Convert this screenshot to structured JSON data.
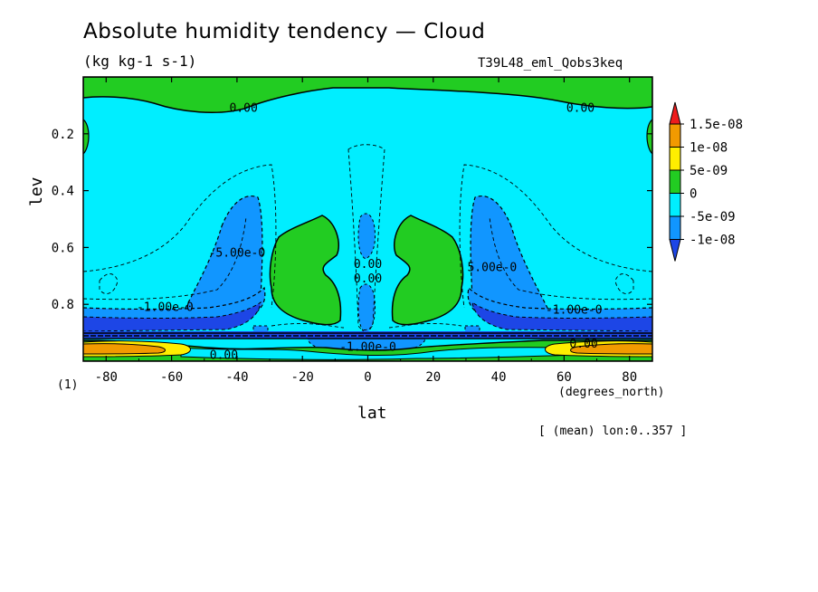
{
  "chart_data": {
    "type": "heatmap",
    "title": "Absolute humidity tendency — Cloud",
    "units": "(kg kg-1 s-1)",
    "experiment": "T39L48_eml_Qobs3keq",
    "xlabel": "lat",
    "x_units": "(degrees_north)",
    "ylabel": "lev",
    "y_level_note": "(1)",
    "mean_note": "[ (mean) lon:0..357 ]",
    "xlim": [
      -87,
      87
    ],
    "ylim": [
      1.0,
      0.0
    ],
    "x_ticks": [
      "-80",
      "-60",
      "-40",
      "-20",
      "0",
      "20",
      "40",
      "60",
      "80"
    ],
    "x_tick_values": [
      -80,
      -60,
      -40,
      -20,
      0,
      20,
      40,
      60,
      80
    ],
    "y_ticks": [
      "0.2",
      "0.4",
      "0.6",
      "0.8"
    ],
    "y_tick_values": [
      0.2,
      0.4,
      0.6,
      0.8
    ],
    "colorbar": {
      "labels": [
        "1.5e-08",
        "1e-08",
        "5e-09",
        "0",
        "-5e-09",
        "-1e-08"
      ],
      "values": [
        1.5e-08,
        1e-08,
        5e-09,
        0,
        -5e-09,
        -1e-08
      ],
      "colors": [
        "#ee1c1c",
        "#f29a00",
        "#ffee00",
        "#22cc22",
        "#00eeff",
        "#1196ff",
        "#1d46e6"
      ]
    },
    "contour_labels": [
      {
        "text": "0.00",
        "lat": -38,
        "lev": 0.11
      },
      {
        "text": "0.00",
        "lat": 65,
        "lev": 0.11
      },
      {
        "text": "0.00",
        "lat": 0,
        "lev": 0.66
      },
      {
        "text": "0.00",
        "lat": 0,
        "lev": 0.71
      },
      {
        "text": "-5.00e-0",
        "lat": -40,
        "lev": 0.62
      },
      {
        "text": "5.00e-0",
        "lat": 38,
        "lev": 0.67
      },
      {
        "text": "-1.00e-0",
        "lat": -62,
        "lev": 0.81
      },
      {
        "text": "-1.00e-0",
        "lat": 63,
        "lev": 0.82
      },
      {
        "text": "-1.00e-0",
        "lat": 0,
        "lev": 0.95
      },
      {
        "text": "0.00",
        "lat": -44,
        "lev": 0.98
      },
      {
        "text": "0.00",
        "lat": 66,
        "lev": 0.94
      }
    ],
    "grid": false,
    "legend_placement": "right"
  }
}
